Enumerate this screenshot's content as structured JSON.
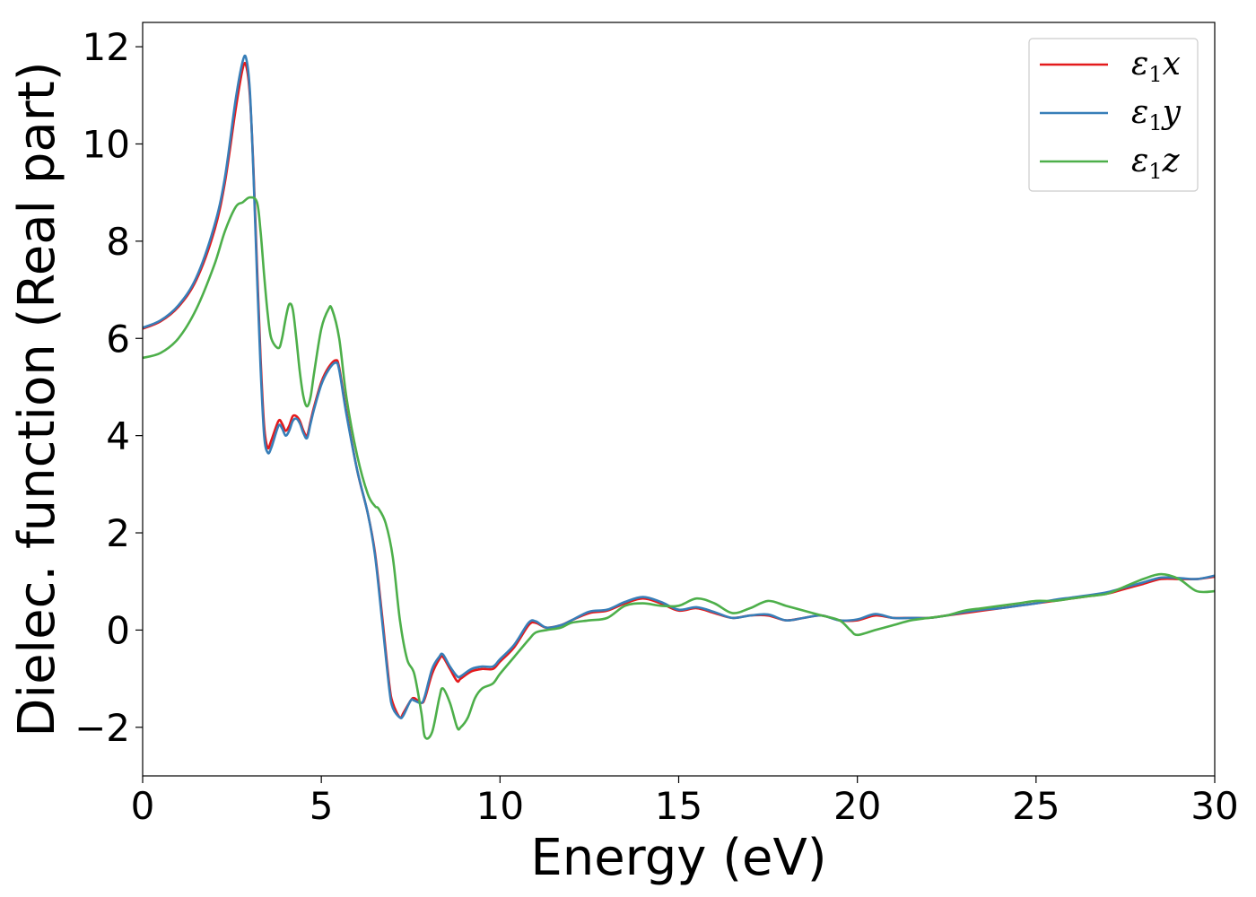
{
  "chart_data": {
    "type": "line",
    "title": "",
    "xlabel": "Energy (eV)",
    "ylabel": "Dielec. function (Real part)",
    "xlim": [
      0,
      30
    ],
    "ylim": [
      -3,
      12.5
    ],
    "grid": false,
    "legend_position": "top-right",
    "xticks": [
      0,
      5,
      10,
      15,
      20,
      25,
      30
    ],
    "xtick_labels": [
      "0",
      "5",
      "10",
      "15",
      "20",
      "25",
      "30"
    ],
    "yticks": [
      -2,
      0,
      2,
      4,
      6,
      8,
      10,
      12
    ],
    "ytick_labels": [
      "−2",
      "0",
      "2",
      "4",
      "6",
      "8",
      "10",
      "12"
    ],
    "series": [
      {
        "name": "ε₁x",
        "legend_symbol": "ε",
        "legend_subscript": "1",
        "legend_suffix": "x",
        "color": "#e41a1c",
        "x": [
          0,
          0.5,
          1.0,
          1.5,
          2.0,
          2.3,
          2.6,
          2.8,
          2.9,
          3.0,
          3.1,
          3.2,
          3.3,
          3.4,
          3.5,
          3.6,
          3.8,
          3.9,
          4.0,
          4.1,
          4.2,
          4.3,
          4.4,
          4.5,
          4.6,
          4.7,
          4.8,
          5.0,
          5.2,
          5.4,
          5.5,
          5.7,
          6.0,
          6.3,
          6.5,
          6.7,
          6.9,
          7.0,
          7.2,
          7.3,
          7.5,
          7.6,
          7.8,
          7.9,
          8.1,
          8.3,
          8.4,
          8.6,
          8.8,
          8.9,
          9.2,
          9.5,
          9.8,
          10.0,
          10.4,
          10.8,
          11.0,
          11.3,
          11.7,
          12.0,
          12.5,
          13.0,
          13.5,
          14.0,
          14.5,
          15.0,
          15.5,
          16.0,
          16.5,
          17.0,
          17.5,
          18.0,
          18.5,
          19.0,
          19.5,
          20.0,
          20.5,
          21.0,
          21.5,
          22.0,
          22.5,
          23.0,
          23.5,
          24.0,
          24.5,
          25.0,
          25.5,
          26.0,
          26.5,
          27.0,
          27.5,
          28.0,
          28.5,
          29.0,
          29.5,
          30.0
        ],
        "y": [
          6.2,
          6.35,
          6.65,
          7.2,
          8.2,
          9.2,
          10.7,
          11.55,
          11.6,
          11.0,
          9.5,
          7.5,
          5.6,
          4.2,
          3.75,
          3.9,
          4.3,
          4.25,
          4.1,
          4.2,
          4.4,
          4.4,
          4.3,
          4.1,
          4.0,
          4.3,
          4.6,
          5.1,
          5.4,
          5.55,
          5.4,
          4.5,
          3.3,
          2.4,
          1.6,
          0.3,
          -1.1,
          -1.5,
          -1.8,
          -1.7,
          -1.45,
          -1.4,
          -1.5,
          -1.4,
          -0.9,
          -0.6,
          -0.55,
          -0.8,
          -1.05,
          -1.0,
          -0.85,
          -0.8,
          -0.8,
          -0.65,
          -0.35,
          0.1,
          0.15,
          0.05,
          0.1,
          0.2,
          0.35,
          0.4,
          0.55,
          0.65,
          0.55,
          0.4,
          0.45,
          0.35,
          0.25,
          0.3,
          0.3,
          0.2,
          0.25,
          0.3,
          0.2,
          0.2,
          0.3,
          0.25,
          0.25,
          0.25,
          0.3,
          0.35,
          0.4,
          0.45,
          0.5,
          0.55,
          0.6,
          0.65,
          0.7,
          0.75,
          0.85,
          0.95,
          1.05,
          1.05,
          1.05,
          1.1
        ]
      },
      {
        "name": "ε₁y",
        "legend_symbol": "ε",
        "legend_subscript": "1",
        "legend_suffix": "y",
        "color": "#377eb8",
        "x": [
          0,
          0.5,
          1.0,
          1.5,
          2.0,
          2.3,
          2.6,
          2.8,
          2.9,
          3.0,
          3.1,
          3.2,
          3.3,
          3.4,
          3.5,
          3.6,
          3.8,
          3.9,
          4.0,
          4.1,
          4.2,
          4.3,
          4.4,
          4.5,
          4.6,
          4.7,
          4.8,
          5.0,
          5.2,
          5.4,
          5.5,
          5.7,
          6.0,
          6.3,
          6.5,
          6.7,
          6.9,
          7.0,
          7.2,
          7.3,
          7.5,
          7.6,
          7.8,
          7.9,
          8.1,
          8.3,
          8.4,
          8.6,
          8.8,
          8.9,
          9.2,
          9.5,
          9.8,
          10.0,
          10.4,
          10.8,
          11.0,
          11.3,
          11.7,
          12.0,
          12.5,
          13.0,
          13.5,
          14.0,
          14.5,
          15.0,
          15.5,
          16.0,
          16.5,
          17.0,
          17.5,
          18.0,
          18.5,
          19.0,
          19.5,
          20.0,
          20.5,
          21.0,
          21.5,
          22.0,
          22.5,
          23.0,
          23.5,
          24.0,
          24.5,
          25.0,
          25.5,
          26.0,
          26.5,
          27.0,
          27.5,
          28.0,
          28.5,
          29.0,
          29.5,
          30.0
        ],
        "y": [
          6.22,
          6.37,
          6.68,
          7.25,
          8.3,
          9.3,
          10.9,
          11.7,
          11.75,
          11.1,
          9.4,
          7.3,
          5.4,
          4.0,
          3.65,
          3.75,
          4.2,
          4.15,
          4.0,
          4.1,
          4.3,
          4.35,
          4.25,
          4.05,
          3.95,
          4.25,
          4.55,
          5.05,
          5.35,
          5.5,
          5.35,
          4.45,
          3.3,
          2.4,
          1.55,
          0.2,
          -1.2,
          -1.6,
          -1.8,
          -1.75,
          -1.45,
          -1.45,
          -1.5,
          -1.35,
          -0.8,
          -0.55,
          -0.5,
          -0.75,
          -0.95,
          -0.95,
          -0.8,
          -0.75,
          -0.75,
          -0.6,
          -0.3,
          0.15,
          0.18,
          0.05,
          0.1,
          0.2,
          0.38,
          0.42,
          0.58,
          0.68,
          0.58,
          0.42,
          0.47,
          0.37,
          0.25,
          0.3,
          0.32,
          0.2,
          0.25,
          0.3,
          0.2,
          0.22,
          0.33,
          0.25,
          0.25,
          0.25,
          0.3,
          0.37,
          0.42,
          0.45,
          0.5,
          0.55,
          0.62,
          0.67,
          0.72,
          0.78,
          0.88,
          0.98,
          1.08,
          1.07,
          1.05,
          1.12
        ]
      },
      {
        "name": "ε₁z",
        "legend_symbol": "ε",
        "legend_subscript": "1",
        "legend_suffix": "z",
        "color": "#4daf4a",
        "x": [
          0,
          0.5,
          1.0,
          1.5,
          2.0,
          2.3,
          2.6,
          2.8,
          3.0,
          3.2,
          3.3,
          3.4,
          3.5,
          3.6,
          3.8,
          3.9,
          4.0,
          4.1,
          4.2,
          4.3,
          4.4,
          4.5,
          4.6,
          4.7,
          4.8,
          5.0,
          5.2,
          5.3,
          5.5,
          5.7,
          6.0,
          6.3,
          6.5,
          6.6,
          6.8,
          7.0,
          7.2,
          7.4,
          7.6,
          7.8,
          7.9,
          8.1,
          8.3,
          8.4,
          8.6,
          8.8,
          8.9,
          9.1,
          9.3,
          9.5,
          9.8,
          10.0,
          10.4,
          10.8,
          11.0,
          11.3,
          11.7,
          12.0,
          12.5,
          13.0,
          13.5,
          14.0,
          14.5,
          15.0,
          15.5,
          16.0,
          16.5,
          17.0,
          17.5,
          18.0,
          18.5,
          19.0,
          19.5,
          19.8,
          20.0,
          20.5,
          21.0,
          21.5,
          22.0,
          22.5,
          23.0,
          23.5,
          24.0,
          24.5,
          25.0,
          25.5,
          26.0,
          26.5,
          27.0,
          27.5,
          28.0,
          28.5,
          29.0,
          29.5,
          30.0
        ],
        "y": [
          5.6,
          5.7,
          6.0,
          6.6,
          7.5,
          8.2,
          8.7,
          8.8,
          8.9,
          8.8,
          8.2,
          7.3,
          6.5,
          6.0,
          5.8,
          6.0,
          6.4,
          6.7,
          6.6,
          6.0,
          5.3,
          4.8,
          4.6,
          4.8,
          5.3,
          6.2,
          6.6,
          6.6,
          6.0,
          4.8,
          3.6,
          2.8,
          2.55,
          2.5,
          2.2,
          1.5,
          0.2,
          -0.6,
          -0.9,
          -1.7,
          -2.2,
          -2.1,
          -1.4,
          -1.2,
          -1.5,
          -2.0,
          -2.0,
          -1.8,
          -1.4,
          -1.2,
          -1.1,
          -0.9,
          -0.55,
          -0.2,
          -0.05,
          0.0,
          0.05,
          0.15,
          0.2,
          0.25,
          0.5,
          0.55,
          0.5,
          0.5,
          0.65,
          0.55,
          0.35,
          0.45,
          0.6,
          0.5,
          0.4,
          0.3,
          0.2,
          0.0,
          -0.1,
          0.0,
          0.1,
          0.2,
          0.25,
          0.3,
          0.4,
          0.45,
          0.5,
          0.55,
          0.6,
          0.6,
          0.65,
          0.7,
          0.75,
          0.9,
          1.05,
          1.15,
          1.05,
          0.8,
          0.8
        ]
      }
    ]
  }
}
